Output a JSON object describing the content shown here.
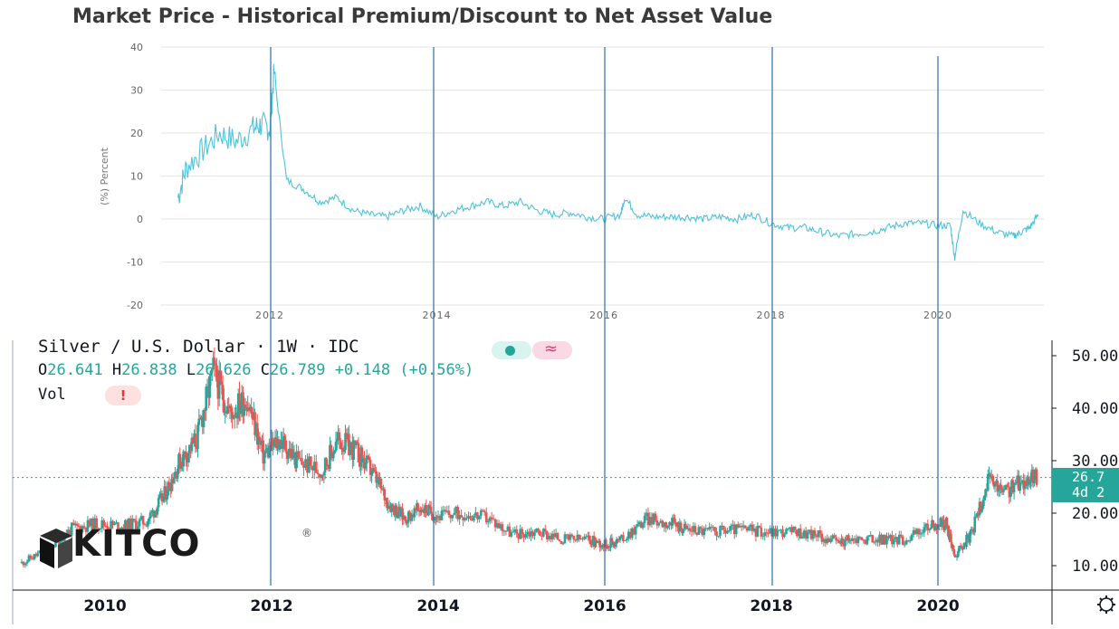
{
  "top_title": "Market Price - Historical Premium/Discount to Net Asset Value",
  "tv": {
    "symbol": "Silver / U.S. Dollar · 1W · IDC",
    "open_label": "O",
    "open": "26.641",
    "high_label": "H",
    "high": "26.838",
    "low_label": "L",
    "low": "26.626",
    "close_label": "C",
    "close": "26.789",
    "change": "+0.148 (+0.56%)",
    "vol_label": "Vol",
    "warn_icon": "!",
    "price_tag_value": "26.7",
    "price_tag_time": "4d 2",
    "settings_icon": "gear-icon"
  },
  "brand": {
    "logo_text": "KITCO",
    "registered": "®"
  },
  "colors": {
    "premium_line": "#4fc3d9",
    "up": "#26a69a",
    "down": "#ef5350",
    "marker": "#2a6fa8",
    "price_tag": "#26a69a"
  },
  "chart_data": [
    {
      "type": "line",
      "title": "Market Price - Historical Premium/Discount to Net Asset Value",
      "ylabel": "(%) Percent",
      "xlabel": "",
      "ylim": [
        -20,
        40
      ],
      "yticks": [
        40,
        30,
        20,
        10,
        0,
        -10,
        -20
      ],
      "xticks": [
        "2012",
        "2014",
        "2016",
        "2018",
        "2020"
      ],
      "grid": true,
      "series": [
        {
          "x": [
            2010.9,
            2011.0,
            2011.2,
            2011.4,
            2011.6,
            2011.8,
            2011.9,
            2012.0,
            2012.05,
            2012.2,
            2012.4,
            2012.6,
            2012.8,
            2013.0,
            2013.2,
            2013.4,
            2013.6,
            2013.8,
            2014.0,
            2014.2,
            2014.4,
            2014.6,
            2014.8,
            2015.0,
            2015.2,
            2015.4,
            2015.6,
            2015.8,
            2016.0,
            2016.2,
            2016.25,
            2016.4,
            2016.6,
            2016.8,
            2017.0,
            2017.2,
            2017.4,
            2017.6,
            2017.8,
            2018.0,
            2018.2,
            2018.4,
            2018.6,
            2018.8,
            2019.0,
            2019.2,
            2019.4,
            2019.6,
            2019.8,
            2020.0,
            2020.15,
            2020.2,
            2020.3,
            2020.5,
            2020.7,
            2020.9,
            2021.0,
            2021.1,
            2021.2
          ],
          "values": [
            5,
            12,
            16,
            20,
            18,
            21,
            22,
            21,
            34,
            9,
            7,
            4,
            5,
            2,
            1,
            0.5,
            2,
            3,
            0.5,
            2,
            3,
            4,
            3,
            4,
            2,
            1,
            1.5,
            0.5,
            0,
            1,
            5,
            1,
            0.5,
            0.5,
            0.5,
            0,
            0.5,
            0,
            1,
            -1,
            -2,
            -2,
            -3,
            -4,
            -3.5,
            -3,
            -2,
            -1,
            -1,
            -1.5,
            -1.5,
            -9,
            2,
            -1,
            -3,
            -4,
            -3,
            -2,
            1
          ]
        }
      ]
    },
    {
      "type": "candlestick",
      "title": "Silver / U.S. Dollar · 1W · IDC",
      "ylim": [
        8,
        51
      ],
      "yticks": [
        "50.00",
        "40.00",
        "30.00",
        "20.00",
        "10.00"
      ],
      "xticks": [
        "2010",
        "2012",
        "2014",
        "2016",
        "2018",
        "2020"
      ],
      "last_price": 26.789,
      "series": [
        {
          "x": [
            2009.0,
            2009.3,
            2009.6,
            2009.9,
            2010.2,
            2010.5,
            2010.7,
            2010.9,
            2011.1,
            2011.3,
            2011.5,
            2011.7,
            2011.9,
            2012.1,
            2012.3,
            2012.6,
            2012.8,
            2013.0,
            2013.2,
            2013.4,
            2013.6,
            2013.8,
            2014.0,
            2014.3,
            2014.6,
            2014.9,
            2015.2,
            2015.5,
            2015.8,
            2016.0,
            2016.2,
            2016.5,
            2016.8,
            2017.0,
            2017.3,
            2017.6,
            2017.9,
            2018.2,
            2018.5,
            2018.8,
            2019.0,
            2019.3,
            2019.6,
            2019.9,
            2020.1,
            2020.2,
            2020.4,
            2020.6,
            2020.8,
            2021.0,
            2021.2
          ],
          "values": [
            10.5,
            13,
            17,
            18,
            17.5,
            18.5,
            23,
            30,
            34,
            47,
            39,
            42,
            31,
            34,
            30,
            28,
            34,
            32,
            28,
            22,
            19,
            21,
            19.5,
            20,
            19,
            16,
            16.5,
            15,
            15,
            14,
            15,
            19,
            18,
            17,
            16.5,
            17,
            16.5,
            16.5,
            16,
            14.5,
            15,
            15,
            15,
            17.5,
            18,
            12,
            16,
            26,
            24,
            26,
            27
          ]
        }
      ]
    }
  ]
}
